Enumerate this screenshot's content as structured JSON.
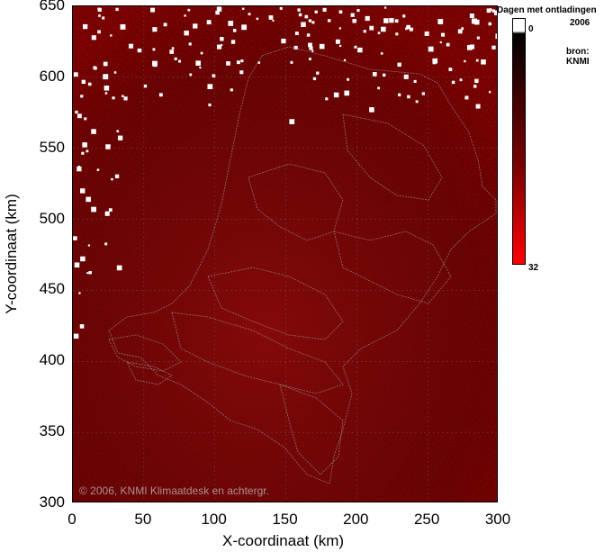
{
  "chart_data": {
    "type": "heatmap",
    "title": "Dagen met ontladingen",
    "subtitle": "2006",
    "source_label": "bron:",
    "source_name": "KNMI",
    "xlabel": "X-coordinaat (km)",
    "ylabel": "Y-coordinaat (km)",
    "xlim": [
      0,
      300
    ],
    "ylim": [
      300,
      650
    ],
    "x_ticks": [
      0,
      50,
      100,
      150,
      200,
      250,
      300
    ],
    "y_ticks": [
      300,
      350,
      400,
      450,
      500,
      550,
      600,
      650
    ],
    "x_tick_labels": [
      "0",
      "50",
      "100",
      "150",
      "200",
      "250",
      "300"
    ],
    "y_tick_labels": [
      "300",
      "350",
      "400",
      "450",
      "500",
      "550",
      "600",
      "650"
    ],
    "colorbar": {
      "min": 0,
      "max": 32,
      "min_label": "0",
      "max_label": "32",
      "color_low": "#000000",
      "color_high": "#ff0000"
    },
    "grid": true,
    "copyright": "© 2006, KNMI Klimaatdesk en achtergr."
  }
}
